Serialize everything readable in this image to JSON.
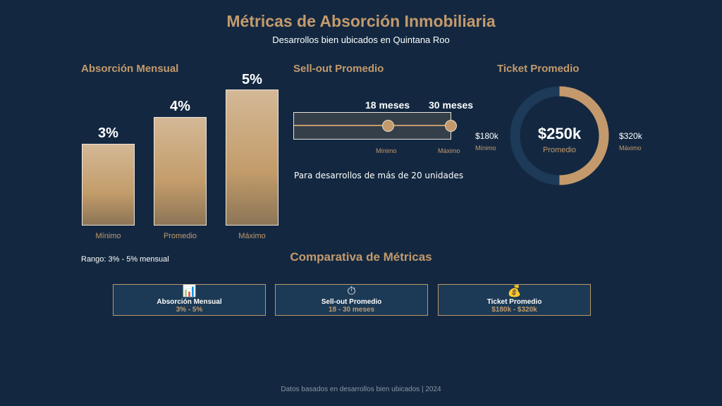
{
  "header": {
    "title": "Métricas de Absorción Inmobiliaria",
    "subtitle": "Desarrollos bien ubicados en Quintana Roo"
  },
  "absorption": {
    "title": "Absorción Mensual",
    "bars": [
      {
        "label": "Mínimo",
        "value": 3,
        "display": "3%"
      },
      {
        "label": "Promedio",
        "value": 4,
        "display": "4%"
      },
      {
        "label": "Máximo",
        "value": 5,
        "display": "5%"
      }
    ],
    "range": "Rango: 3% - 5% mensual"
  },
  "sellout": {
    "title": "Sell-out Promedio",
    "min_value": "18 meses",
    "max_value": "30 meses",
    "min_label": "Mínimo",
    "max_label": "Máximo",
    "note": "Para desarrollos de más de 20 unidades"
  },
  "ticket": {
    "title": "Ticket Promedio",
    "center_value": "$250k",
    "center_label": "Promedio",
    "min_value": "$180k",
    "min_label": "Mínimo",
    "max_value": "$320k",
    "max_label": "Máximo",
    "fill_fraction": 0.5
  },
  "comparison": {
    "title": "Comparativa de Métricas",
    "cards": [
      {
        "icon": "bar-chart-icon",
        "glyph": "📊",
        "title": "Absorción Mensual",
        "value": "3% - 5%"
      },
      {
        "icon": "stopwatch-icon",
        "glyph": "⏱",
        "title": "Sell-out Promedio",
        "value": "18 - 30 meses"
      },
      {
        "icon": "money-bag-icon",
        "glyph": "💰",
        "title": "Ticket Promedio",
        "value": "$180k - $320k"
      }
    ]
  },
  "footer": "Datos basados en desarrollos bien ubicados | 2024",
  "colors": {
    "background": "#132840",
    "accent": "#c49a6c"
  }
}
